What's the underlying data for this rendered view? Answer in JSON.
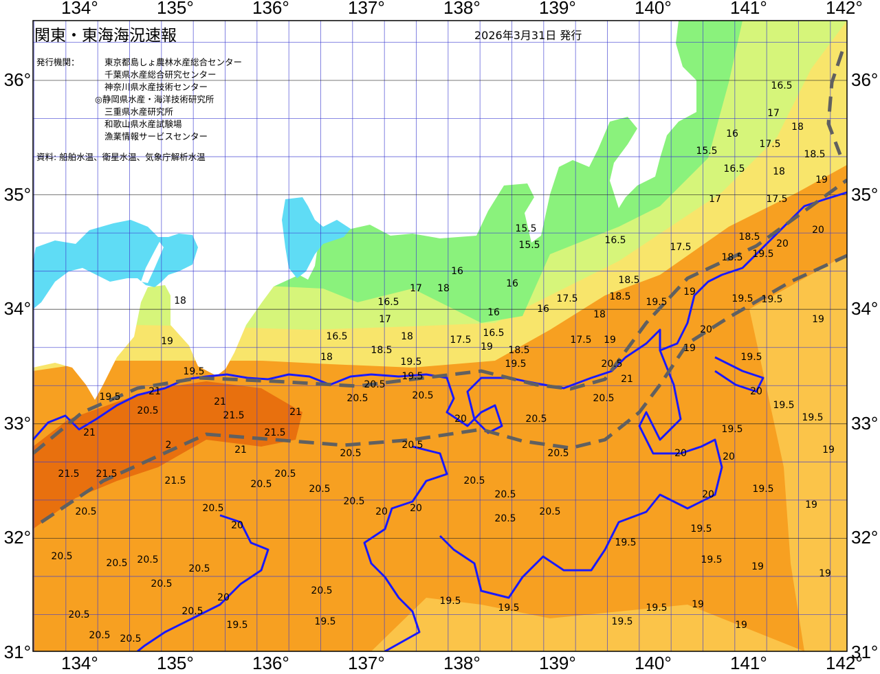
{
  "header": {
    "title": "関東・東海海況速報",
    "issue_date": "2026年3月31日 発行",
    "issuer_label": "発行機関：",
    "issuers": [
      "東京都島しょ農林水産総合センター",
      "千葉県水産総合研究センター",
      "神奈川県水産技術センター",
      "◎静岡県水産・海洋技術研究所",
      "三重県水産研究所",
      "和歌山県水産試験場",
      "漁業情報サービスセンター"
    ],
    "source": "資料: 船舶水温、衛星水温、気象庁解析水温"
  },
  "axes": {
    "longitude_labels": [
      "134°",
      "135°",
      "136°",
      "137°",
      "138°",
      "139°",
      "140°",
      "141°",
      "142°"
    ],
    "latitude_labels": [
      "36°",
      "35°",
      "34°",
      "33°",
      "32°",
      "31°"
    ],
    "lon_range": [
      133.5,
      142
    ],
    "lat_range": [
      31,
      36.5
    ]
  },
  "map": {
    "type": "sea surface temperature contour map",
    "colors": {
      "land": "#ffffff",
      "warm_core": "#e8700e",
      "warm": "#f7a021",
      "mild": "#fbc449",
      "cool_yellow": "#f8e56b",
      "cool_yellowgreen": "#d6f57a",
      "cool_green": "#8af27c",
      "inner_bay": "#5fdcf5",
      "contour_20c": "#1a1aff",
      "kuroshio_axis": "#606060"
    },
    "sea_temperature_labels": [
      "18",
      "19",
      "19.5",
      "19.5",
      "20.5",
      "21",
      "21",
      "21.5",
      "21.5",
      "21",
      "21",
      "2",
      "21",
      "21.5",
      "21.5",
      "21.5",
      "20.5",
      "20.5",
      "20.5",
      "20.5",
      "20.5",
      "20.5",
      "20.5",
      "20.5",
      "20.5",
      "20.5",
      "20.5",
      "20.5",
      "20.5",
      "20.5",
      "20.5",
      "20.5",
      "20.5",
      "20.5",
      "20.5",
      "20.5",
      "20.5",
      "20.5",
      "20.5",
      "20.5",
      "20.5",
      "20.5",
      "20.5",
      "20",
      "20",
      "20",
      "20",
      "20",
      "20",
      "20",
      "20",
      "19.5",
      "19.5",
      "19.5",
      "19.5",
      "19.5",
      "19.5",
      "19.5",
      "19.5",
      "19.5",
      "19.5",
      "19.5",
      "19.5",
      "19.5",
      "19.5",
      "19.5",
      "19",
      "19",
      "19",
      "19",
      "19",
      "19",
      "19",
      "19",
      "20.5",
      "20",
      "16.5",
      "17",
      "16.5",
      "17",
      "18",
      "16",
      "15.5",
      "15.5",
      "16",
      "16",
      "16",
      "17.5",
      "16.5",
      "18",
      "18.5",
      "19.5",
      "18",
      "17.5",
      "19",
      "18.5",
      "17.5",
      "18",
      "18.5",
      "19",
      "18.5",
      "19.5",
      "16.5",
      "17.5",
      "18.5",
      "19.5",
      "20",
      "20",
      "18.5",
      "17",
      "17.5",
      "19",
      "18",
      "18.5",
      "17.5",
      "18",
      "17",
      "16.5",
      "16.5",
      "15.5",
      "16",
      "19.5",
      "19.5",
      "19.5",
      "20",
      "19",
      "20.5",
      "21"
    ]
  }
}
